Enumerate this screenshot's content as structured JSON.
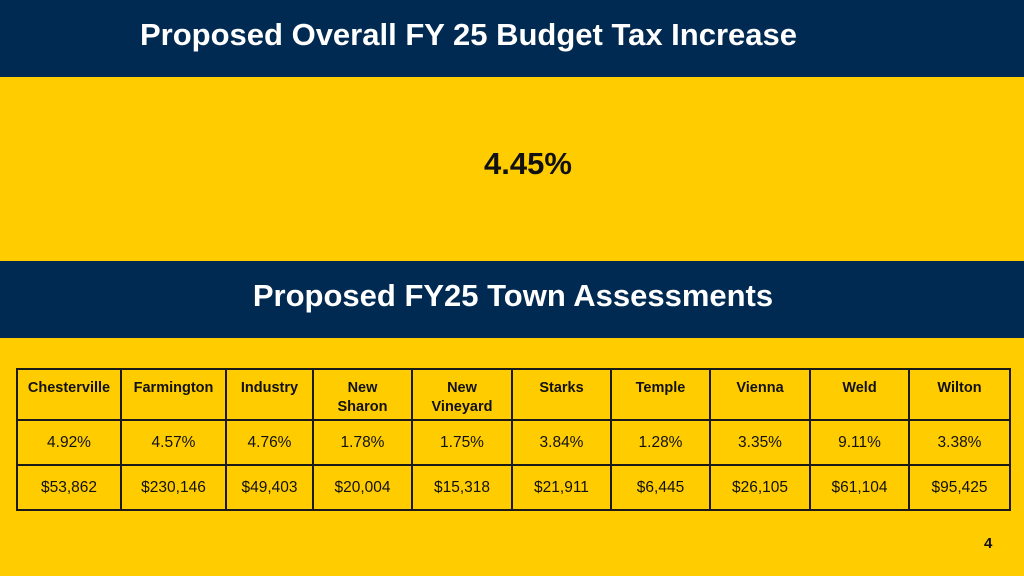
{
  "header": {
    "title": "Proposed Overall FY 25 Budget Tax Increase"
  },
  "overall_increase": "4.45%",
  "section": {
    "title": "Proposed FY25 Town Assessments"
  },
  "table": {
    "columns": [
      {
        "line1": "Chesterville",
        "line2": ""
      },
      {
        "line1": "Farmington",
        "line2": ""
      },
      {
        "line1": "Industry",
        "line2": ""
      },
      {
        "line1": "New",
        "line2": "Sharon"
      },
      {
        "line1": "New",
        "line2": "Vineyard"
      },
      {
        "line1": "Starks",
        "line2": ""
      },
      {
        "line1": "Temple",
        "line2": ""
      },
      {
        "line1": "Vienna",
        "line2": ""
      },
      {
        "line1": "Weld",
        "line2": ""
      },
      {
        "line1": "Wilton",
        "line2": ""
      }
    ],
    "rows": [
      [
        "4.92%",
        "4.57%",
        "4.76%",
        "1.78%",
        "1.75%",
        "3.84%",
        "1.28%",
        "3.35%",
        "9.11%",
        "3.38%"
      ],
      [
        "$53,862",
        "$230,146",
        "$49,403",
        "$20,004",
        "$15,318",
        "$21,911",
        "$6,445",
        "$26,105",
        "$61,104",
        "$95,425"
      ]
    ]
  },
  "page_number": "4",
  "colors": {
    "background": "#FFCC00",
    "band": "#012A52",
    "band_text": "#FFFFFF"
  }
}
